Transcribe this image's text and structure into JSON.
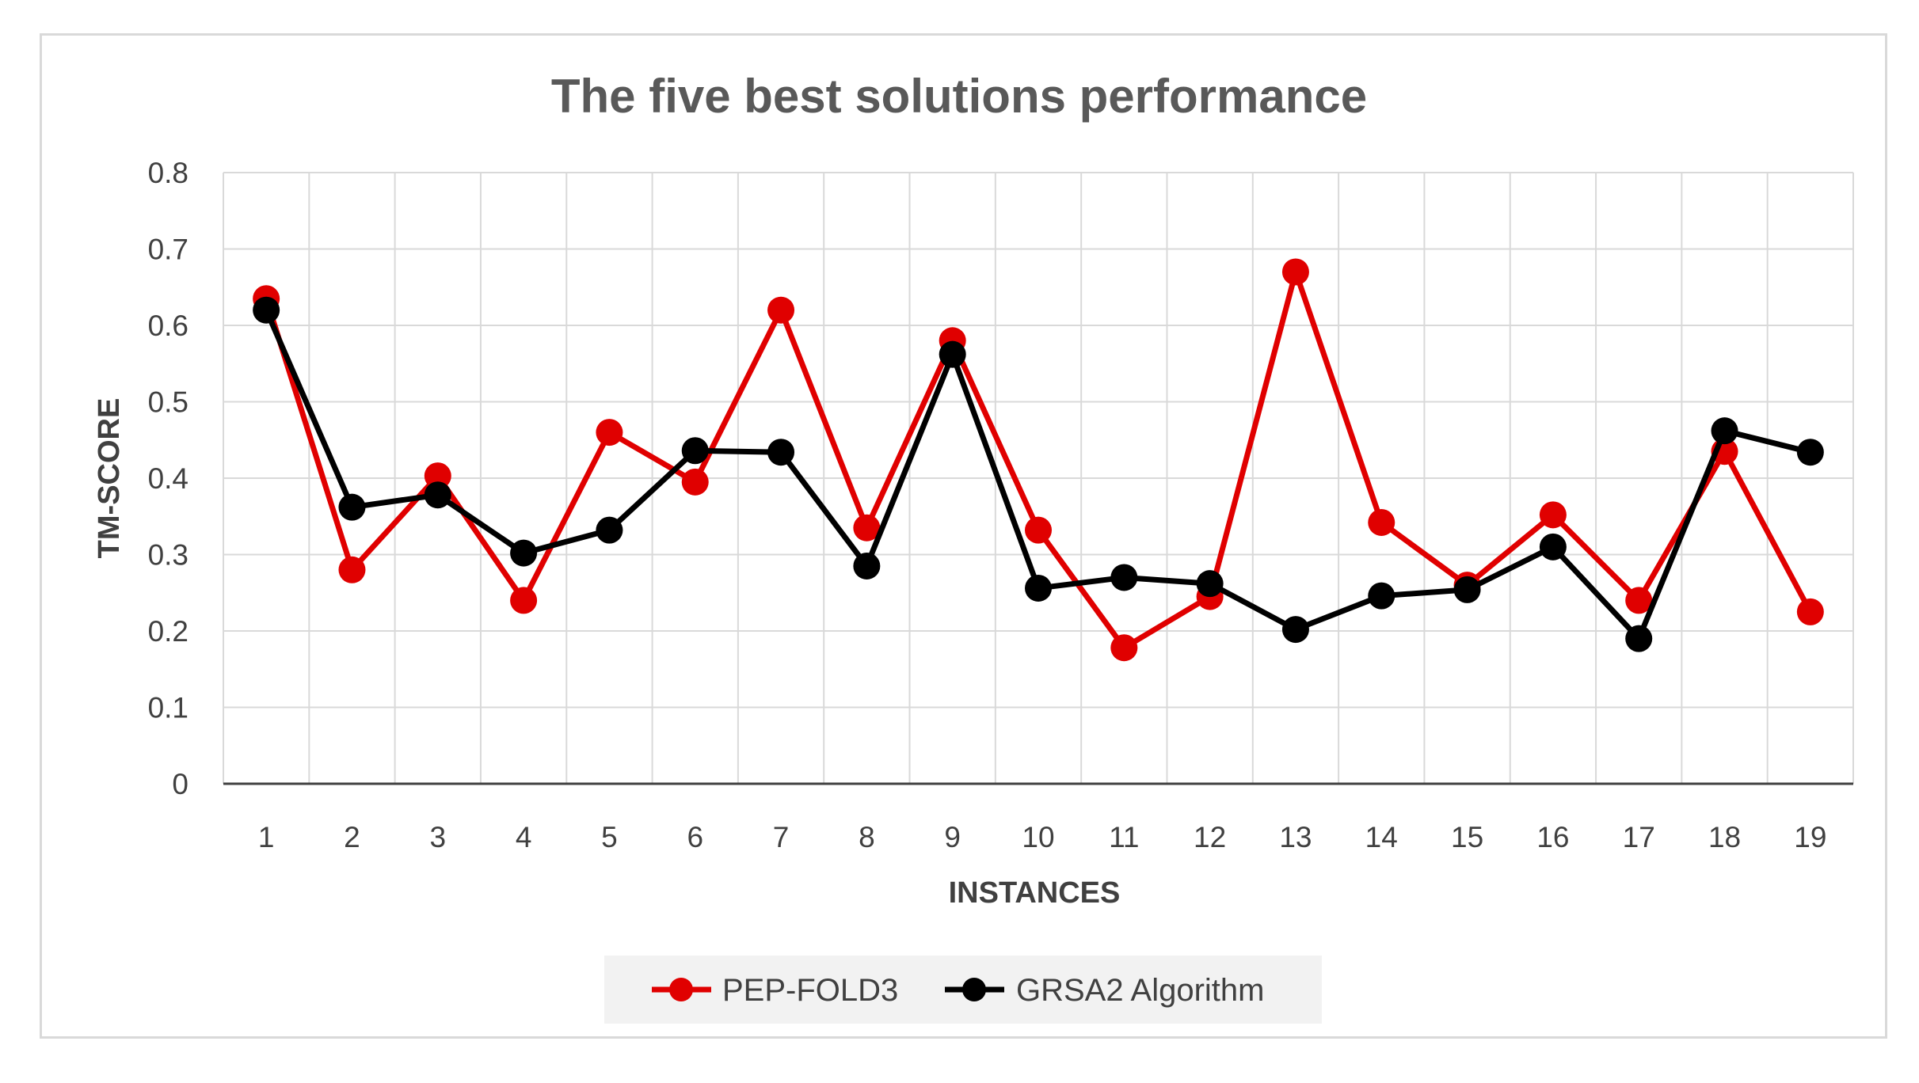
{
  "chart_data": {
    "type": "line",
    "title": "The five best solutions performance",
    "xlabel": "INSTANCES",
    "ylabel": "TM-SCORE",
    "categories": [
      "1",
      "2",
      "3",
      "4",
      "5",
      "6",
      "7",
      "8",
      "9",
      "10",
      "11",
      "12",
      "13",
      "14",
      "15",
      "16",
      "17",
      "18",
      "19"
    ],
    "ylim": [
      0,
      0.8
    ],
    "yticks": [
      "0",
      "0.1",
      "0.2",
      "0.3",
      "0.4",
      "0.5",
      "0.6",
      "0.7",
      "0.8"
    ],
    "grid": true,
    "legend_position": "bottom",
    "series": [
      {
        "name": "PEP-FOLD3",
        "color": "#e00000",
        "values": [
          0.635,
          0.28,
          0.403,
          0.24,
          0.46,
          0.395,
          0.62,
          0.335,
          0.58,
          0.332,
          0.178,
          0.245,
          0.67,
          0.342,
          0.26,
          0.352,
          0.24,
          0.435,
          0.225
        ]
      },
      {
        "name": "GRSA2 Algorithm",
        "color": "#000000",
        "values": [
          0.62,
          0.362,
          0.378,
          0.302,
          0.332,
          0.436,
          0.434,
          0.285,
          0.562,
          0.256,
          0.27,
          0.262,
          0.202,
          0.246,
          0.254,
          0.31,
          0.19,
          0.462,
          0.434
        ]
      }
    ]
  }
}
